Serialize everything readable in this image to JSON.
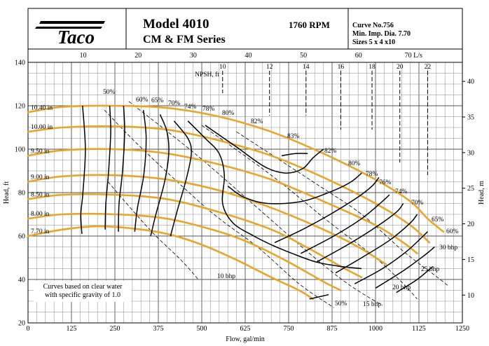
{
  "header": {
    "logo_text": "Taco",
    "model": "Model 4010",
    "series": "CM & FM Series",
    "rpm": "1760 RPM",
    "curve_no": "Curve No.756",
    "min_imp": "Min. Imp. Dia. 7.70",
    "sizes": "Sizes 5 x 4 x10"
  },
  "chart_data": {
    "type": "line",
    "xlabel": "Flow, gal/min",
    "ylabel": "Head, ft",
    "y2label": "Head, m",
    "top_axis_unit": "L/s",
    "xlim": [
      0,
      1250
    ],
    "ylim": [
      20,
      140
    ],
    "x_ticks": [
      0,
      125,
      250,
      375,
      500,
      625,
      750,
      875,
      1000,
      1125,
      1250
    ],
    "y_ticks": [
      20,
      40,
      60,
      80,
      100,
      120,
      140
    ],
    "top_ticks": [
      10,
      20,
      30,
      40,
      50,
      60,
      70
    ],
    "right_ticks": [
      10,
      15,
      20,
      25,
      30,
      35,
      40
    ],
    "grid": true,
    "note": [
      "Curves based on clear water",
      "with specific gravity of 1.0"
    ],
    "impellers": [
      {
        "label": "10.40 in",
        "points": [
          [
            0,
            117
          ],
          [
            100,
            119.5
          ],
          [
            250,
            120
          ],
          [
            400,
            119
          ],
          [
            550,
            115
          ],
          [
            700,
            108
          ],
          [
            850,
            98
          ],
          [
            1000,
            86
          ],
          [
            1100,
            76
          ],
          [
            1150,
            68
          ],
          [
            1195,
            62
          ]
        ]
      },
      {
        "label": "10.00 in",
        "points": [
          [
            0,
            108
          ],
          [
            100,
            110
          ],
          [
            250,
            110.5
          ],
          [
            400,
            109
          ],
          [
            550,
            104
          ],
          [
            700,
            97
          ],
          [
            850,
            87
          ],
          [
            1000,
            75
          ],
          [
            1100,
            65
          ],
          [
            1155,
            57
          ]
        ]
      },
      {
        "label": "9.50 in",
        "points": [
          [
            0,
            97
          ],
          [
            100,
            99.5
          ],
          [
            250,
            100
          ],
          [
            400,
            98
          ],
          [
            550,
            93
          ],
          [
            700,
            86
          ],
          [
            850,
            76
          ],
          [
            1000,
            65
          ],
          [
            1080,
            57
          ],
          [
            1120,
            52
          ]
        ]
      },
      {
        "label": "9.00 in",
        "points": [
          [
            0,
            85
          ],
          [
            100,
            87.5
          ],
          [
            250,
            88
          ],
          [
            400,
            86
          ],
          [
            550,
            81
          ],
          [
            700,
            73
          ],
          [
            850,
            63
          ],
          [
            950,
            55
          ],
          [
            1030,
            47
          ]
        ]
      },
      {
        "label": "8.50 in",
        "points": [
          [
            0,
            77
          ],
          [
            100,
            79
          ],
          [
            250,
            79
          ],
          [
            400,
            77
          ],
          [
            550,
            71
          ],
          [
            700,
            63
          ],
          [
            800,
            55
          ],
          [
            900,
            46
          ],
          [
            960,
            41
          ]
        ]
      },
      {
        "label": "8.00 in",
        "points": [
          [
            0,
            68
          ],
          [
            100,
            70
          ],
          [
            250,
            70
          ],
          [
            400,
            68
          ],
          [
            550,
            62
          ],
          [
            650,
            56
          ],
          [
            750,
            48
          ],
          [
            850,
            39
          ],
          [
            900,
            35
          ]
        ]
      },
      {
        "label": "7.70 in",
        "points": [
          [
            0,
            60
          ],
          [
            100,
            63
          ],
          [
            200,
            64.5
          ],
          [
            300,
            63.5
          ],
          [
            400,
            61
          ],
          [
            500,
            56
          ],
          [
            600,
            49
          ],
          [
            700,
            41
          ],
          [
            780,
            35
          ],
          [
            820,
            31
          ]
        ]
      }
    ],
    "efficiency": [
      {
        "label": "50%",
        "points": [
          [
            157,
            120
          ],
          [
            165,
            100
          ],
          [
            158,
            80
          ],
          [
            152,
            70
          ],
          [
            155,
            61
          ]
        ]
      },
      {
        "label": "60%",
        "points": [
          [
            235,
            120
          ],
          [
            238,
            108
          ],
          [
            232,
            90
          ],
          [
            224,
            75
          ],
          [
            222,
            63
          ]
        ]
      },
      {
        "label": "65%",
        "points": [
          [
            275,
            120
          ],
          [
            278,
            108
          ],
          [
            272,
            90
          ],
          [
            262,
            75
          ],
          [
            260,
            62
          ]
        ]
      },
      {
        "label": "70%",
        "points": [
          [
            332,
            118
          ],
          [
            340,
            105
          ],
          [
            333,
            88
          ],
          [
            315,
            73
          ],
          [
            307,
            62
          ]
        ]
      },
      {
        "label": "74%",
        "points": [
          [
            380,
            116
          ],
          [
            400,
            108
          ],
          [
            405,
            98
          ],
          [
            393,
            85
          ],
          [
            368,
            70
          ],
          [
            353,
            60
          ]
        ]
      },
      {
        "label": "78%",
        "points": [
          [
            420,
            113
          ],
          [
            460,
            105
          ],
          [
            470,
            98
          ],
          [
            455,
            86
          ],
          [
            430,
            72
          ],
          [
            410,
            60
          ]
        ]
      },
      {
        "label": "80%",
        "points": [
          [
            460,
            113
          ],
          [
            510,
            105
          ],
          [
            550,
            98
          ],
          [
            565,
            88
          ],
          [
            560,
            75
          ],
          [
            590,
            66
          ],
          [
            650,
            60
          ],
          [
            700,
            56
          ],
          [
            760,
            52
          ],
          [
            830,
            48
          ],
          [
            900,
            46
          ],
          [
            960,
            45
          ]
        ]
      },
      {
        "label": "82%",
        "points": [
          [
            510,
            111
          ],
          [
            600,
            101
          ],
          [
            680,
            92
          ],
          [
            740,
            89
          ],
          [
            790,
            91
          ],
          [
            820,
            96
          ],
          [
            850,
            100
          ]
        ]
      },
      {
        "label": "83%",
        "points": [
          [
            730,
            97
          ],
          [
            770,
            98
          ],
          [
            805,
            98
          ]
        ]
      },
      {
        "label": "82%",
        "points": [
          [
            575,
            83
          ],
          [
            620,
            78
          ],
          [
            690,
            75
          ],
          [
            790,
            76
          ],
          [
            880,
            81
          ],
          [
            930,
            85
          ],
          [
            960,
            89
          ]
        ]
      },
      {
        "label": "80%",
        "points": [
          [
            710,
            57
          ],
          [
            790,
            63
          ],
          [
            870,
            70
          ],
          [
            950,
            78
          ],
          [
            990,
            83
          ],
          [
            1010,
            87
          ]
        ]
      },
      {
        "label": "78%",
        "points": [
          [
            785,
            52
          ],
          [
            880,
            60
          ],
          [
            960,
            68
          ],
          [
            1020,
            76
          ],
          [
            1040,
            79
          ]
        ]
      },
      {
        "label": "76%",
        "points": [
          [
            830,
            48
          ],
          [
            920,
            56
          ],
          [
            1000,
            64
          ],
          [
            1060,
            71
          ],
          [
            1080,
            75
          ]
        ]
      },
      {
        "label": "74%",
        "points": [
          [
            885,
            43
          ],
          [
            960,
            50
          ],
          [
            1040,
            58
          ],
          [
            1100,
            66
          ],
          [
            1120,
            70
          ]
        ]
      },
      {
        "label": "70%",
        "points": [
          [
            940,
            38
          ],
          [
            1020,
            45
          ],
          [
            1090,
            53
          ],
          [
            1150,
            62
          ]
        ]
      },
      {
        "label": "65%",
        "points": [
          [
            1000,
            36
          ],
          [
            1080,
            44
          ],
          [
            1140,
            51
          ],
          [
            1170,
            55
          ]
        ]
      },
      {
        "label": "60%",
        "points": [
          [
            1060,
            34
          ],
          [
            1120,
            40
          ],
          [
            1165,
            46
          ]
        ]
      },
      {
        "label": "50%",
        "points": [
          [
            810,
            31
          ],
          [
            865,
            33
          ]
        ]
      }
    ],
    "bhp": [
      {
        "label": "10 bhp",
        "points": [
          [
            230,
            85
          ],
          [
            350,
            63
          ],
          [
            440,
            49
          ],
          [
            490,
            40
          ]
        ]
      },
      {
        "label": "15 bhp",
        "points": [
          [
            220,
            118
          ],
          [
            330,
            100
          ],
          [
            520,
            72
          ],
          [
            660,
            55
          ],
          [
            780,
            38
          ],
          [
            880,
            27
          ]
        ]
      },
      {
        "label": "20 bhp",
        "points": [
          [
            290,
            122
          ],
          [
            480,
            98
          ],
          [
            660,
            73
          ],
          [
            810,
            52
          ],
          [
            920,
            38
          ],
          [
            1020,
            28
          ]
        ]
      },
      {
        "label": "25 bhp",
        "points": [
          [
            500,
            111
          ],
          [
            700,
            88
          ],
          [
            870,
            66
          ],
          [
            1000,
            50
          ],
          [
            1080,
            38
          ],
          [
            1120,
            31
          ]
        ]
      },
      {
        "label": "30 bhp",
        "points": [
          [
            600,
            108
          ],
          [
            820,
            85
          ],
          [
            960,
            70
          ],
          [
            1080,
            53
          ],
          [
            1170,
            42
          ],
          [
            1210,
            37
          ]
        ]
      }
    ],
    "npsh": {
      "label": "NPSH, ft",
      "items": [
        {
          "label": "10",
          "x": 560
        },
        {
          "label": "12",
          "x": 695
        },
        {
          "label": "14",
          "x": 800
        },
        {
          "label": "16",
          "x": 900
        },
        {
          "label": "18",
          "x": 990
        },
        {
          "label": "20",
          "x": 1070
        },
        {
          "label": "22",
          "x": 1150
        }
      ]
    },
    "colors": {
      "impeller": "#E8A52A",
      "efficiency": "#000000",
      "bhp": "#000000",
      "grid": "#8a8a8a"
    }
  }
}
